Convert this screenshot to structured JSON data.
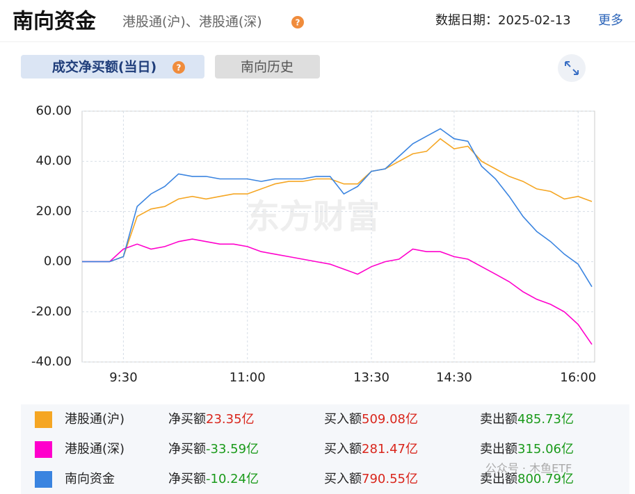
{
  "header": {
    "title": "南向资金",
    "subtitle": "港股通(沪)、港股通(深)",
    "date_label": "数据日期：",
    "date": "2025-02-13",
    "more": "更多"
  },
  "tabs": [
    "成交净买额(当日)",
    "南向历史"
  ],
  "watermark": "东方财富",
  "chart_data": {
    "type": "line",
    "categories": [
      null,
      null,
      null,
      "9:30",
      null,
      null,
      null,
      null,
      null,
      null,
      null,
      null,
      "11:00",
      null,
      null,
      null,
      null,
      null,
      null,
      null,
      null,
      "13:30",
      null,
      null,
      null,
      null,
      null,
      "14:30",
      null,
      null,
      null,
      null,
      null,
      null,
      null,
      null,
      "16:00",
      null
    ],
    "series": [
      {
        "name": "港股通(沪)",
        "color": "#f5a623",
        "values": [
          0,
          0,
          0,
          2,
          18,
          21,
          22,
          25,
          26,
          25,
          26,
          27,
          27,
          29,
          31,
          32,
          32,
          33,
          33,
          31,
          31,
          36,
          37,
          40,
          43,
          44,
          49,
          45,
          46,
          40,
          37,
          34,
          32,
          29,
          28,
          25,
          26,
          24
        ]
      },
      {
        "name": "港股通(深)",
        "color": "#ff00cc",
        "values": [
          0,
          0,
          0,
          5,
          7,
          5,
          6,
          8,
          9,
          8,
          7,
          7,
          6,
          4,
          3,
          2,
          1,
          0,
          -1,
          -3,
          -5,
          -2,
          0,
          1,
          5,
          4,
          4,
          2,
          1,
          -2,
          -5,
          -8,
          -12,
          -15,
          -17,
          -20,
          -25,
          -33
        ]
      },
      {
        "name": "南向资金",
        "color": "#3a84e0",
        "values": [
          0,
          0,
          0,
          2,
          22,
          27,
          30,
          35,
          34,
          34,
          33,
          33,
          33,
          32,
          33,
          33,
          33,
          34,
          34,
          27,
          30,
          36,
          37,
          42,
          47,
          50,
          53,
          49,
          48,
          38,
          33,
          26,
          18,
          12,
          8,
          3,
          -1,
          -10
        ]
      }
    ],
    "ylim": [
      -40,
      60
    ],
    "yticks": [
      {
        "value": -40,
        "label": "-40.00"
      },
      {
        "value": -20,
        "label": "-20.00"
      },
      {
        "value": 0,
        "label": "0.00"
      },
      {
        "value": 20,
        "label": "20.00"
      },
      {
        "value": 40,
        "label": "40.00"
      },
      {
        "value": 60,
        "label": "60.00"
      }
    ],
    "grid": true
  },
  "summary": [
    {
      "net_label": "净买额",
      "net": "23.35亿",
      "buy_label": "买入额",
      "buy": "509.08亿",
      "sell_label": "卖出额",
      "sell": "485.73亿"
    },
    {
      "net_label": "净买额",
      "net": "-33.59亿",
      "buy_label": "买入额",
      "buy": "281.47亿",
      "sell_label": "卖出额",
      "sell": "315.06亿"
    },
    {
      "net_label": "净买额",
      "net": "-10.24亿",
      "buy_label": "买入额",
      "buy": "790.55亿",
      "sell_label": "卖出额",
      "sell": "800.79亿"
    }
  ],
  "footer_watermark": "公众号 · 木鱼ETF"
}
